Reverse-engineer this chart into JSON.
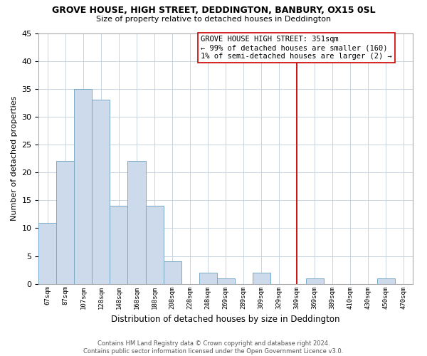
{
  "title": "GROVE HOUSE, HIGH STREET, DEDDINGTON, BANBURY, OX15 0SL",
  "subtitle": "Size of property relative to detached houses in Deddington",
  "xlabel": "Distribution of detached houses by size in Deddington",
  "ylabel": "Number of detached properties",
  "bar_labels": [
    "67sqm",
    "87sqm",
    "107sqm",
    "128sqm",
    "148sqm",
    "168sqm",
    "188sqm",
    "208sqm",
    "228sqm",
    "248sqm",
    "269sqm",
    "289sqm",
    "309sqm",
    "329sqm",
    "349sqm",
    "369sqm",
    "389sqm",
    "410sqm",
    "430sqm",
    "450sqm",
    "470sqm"
  ],
  "bar_values": [
    11,
    22,
    35,
    33,
    14,
    22,
    14,
    4,
    0,
    2,
    1,
    0,
    2,
    0,
    0,
    1,
    0,
    0,
    0,
    1,
    0
  ],
  "bar_color": "#ccdaeb",
  "bar_edge_color": "#7aaac8",
  "ylim": [
    0,
    45
  ],
  "yticks": [
    0,
    5,
    10,
    15,
    20,
    25,
    30,
    35,
    40,
    45
  ],
  "vline_x_idx": 14,
  "vline_color": "#cc0000",
  "annotation_title": "GROVE HOUSE HIGH STREET: 351sqm",
  "annotation_line1": "← 99% of detached houses are smaller (160)",
  "annotation_line2": "1% of semi-detached houses are larger (2) →",
  "footer_line1": "Contains HM Land Registry data © Crown copyright and database right 2024.",
  "footer_line2": "Contains public sector information licensed under the Open Government Licence v3.0.",
  "grid_color": "#c8d4e0",
  "background_color": "#ffffff"
}
